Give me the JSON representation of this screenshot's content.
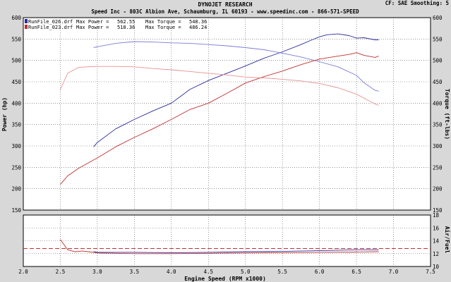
{
  "header": {
    "title": "DYNOJET RESEARCH",
    "subtitle": "Speed Inc - 803C Albion Ave, Schaumburg, IL 60193 - www.speedinc.com - 866-571-SPEED",
    "corner_info": "CF: SAE  Smoothing: 5"
  },
  "chart_data": [
    {
      "type": "line",
      "title": "DYNOJET RESEARCH",
      "xlabel": "Engine Speed (RPM x1000)",
      "ylabel": "Power (hp)",
      "y2label": "Torque (ft-lbs)",
      "xlim": [
        2.0,
        7.5
      ],
      "ylim": [
        150,
        600
      ],
      "y2lim": [
        150,
        600
      ],
      "x_ticks": [
        "2.0",
        "2.5",
        "3.0",
        "3.5",
        "4.0",
        "4.5",
        "5.0",
        "5.5",
        "6.0",
        "6.5",
        "7.0",
        "7.5"
      ],
      "y_ticks": [
        "150",
        "200",
        "250",
        "300",
        "350",
        "400",
        "450",
        "500",
        "550",
        "600"
      ],
      "y2_ticks": [
        "150",
        "200",
        "250",
        "300",
        "350",
        "400",
        "450",
        "500",
        "550",
        "600"
      ],
      "grid": true,
      "legend_position": "top-left",
      "legend": [
        {
          "file": "RunFile_026.drf",
          "max_power_label": "Max Power =",
          "max_power": "562.55",
          "max_torque_label": "Max Torque =",
          "max_torque": "548.36",
          "color": "#2a2aa0"
        },
        {
          "file": "RunFile_023.drf",
          "max_power_label": "Max Power =",
          "max_power": "518.36",
          "max_torque_label": "Max Torque =",
          "max_torque": "486.24",
          "color": "#c03030"
        }
      ],
      "series": [
        {
          "kind": "power",
          "run": "RunFile_026.drf",
          "color": "#2a2aa0",
          "x": [
            2.95,
            3.0,
            3.25,
            3.5,
            3.75,
            4.0,
            4.25,
            4.5,
            4.75,
            5.0,
            5.25,
            5.5,
            5.75,
            5.9,
            6.0,
            6.1,
            6.25,
            6.4,
            6.5,
            6.6,
            6.75,
            6.8
          ],
          "y": [
            298,
            308,
            340,
            362,
            382,
            400,
            432,
            453,
            470,
            487,
            505,
            520,
            537,
            548,
            555,
            560,
            562,
            558,
            552,
            553,
            548,
            548
          ]
        },
        {
          "kind": "torque",
          "run": "RunFile_026.drf",
          "color": "#7a7ad8",
          "x": [
            2.95,
            3.0,
            3.25,
            3.5,
            3.75,
            4.0,
            4.25,
            4.5,
            4.75,
            5.0,
            5.25,
            5.5,
            5.75,
            6.0,
            6.25,
            6.5,
            6.6,
            6.75,
            6.8
          ],
          "y": [
            530,
            532,
            540,
            544,
            543,
            541,
            540,
            537,
            534,
            530,
            525,
            517,
            508,
            497,
            485,
            465,
            448,
            430,
            428
          ]
        },
        {
          "kind": "power",
          "run": "RunFile_023.drf",
          "color": "#c03030",
          "x": [
            2.5,
            2.6,
            2.75,
            3.0,
            3.25,
            3.5,
            3.75,
            4.0,
            4.25,
            4.5,
            4.75,
            5.0,
            5.25,
            5.5,
            5.75,
            6.0,
            6.25,
            6.4,
            6.5,
            6.6,
            6.75,
            6.8
          ],
          "y": [
            210,
            230,
            248,
            272,
            298,
            320,
            340,
            362,
            385,
            400,
            423,
            447,
            462,
            475,
            490,
            503,
            510,
            514,
            518,
            512,
            507,
            510
          ]
        },
        {
          "kind": "torque",
          "run": "RunFile_023.drf",
          "color": "#e89090",
          "x": [
            2.5,
            2.6,
            2.75,
            3.0,
            3.25,
            3.5,
            3.75,
            4.0,
            4.25,
            4.5,
            4.75,
            5.0,
            5.25,
            5.5,
            5.75,
            6.0,
            6.25,
            6.5,
            6.6,
            6.75,
            6.8
          ],
          "y": [
            432,
            470,
            484,
            486,
            486,
            485,
            481,
            478,
            474,
            470,
            466,
            461,
            459,
            456,
            452,
            446,
            436,
            421,
            412,
            398,
            395
          ]
        }
      ]
    },
    {
      "type": "line",
      "title": "",
      "xlabel": "Engine Speed (RPM x1000)",
      "ylabel": "",
      "y2label": "Air/Fuel",
      "xlim": [
        2.0,
        7.5
      ],
      "ylim": [
        10,
        18
      ],
      "y_ticks": [],
      "y2_ticks": [
        "10",
        "12",
        "14",
        "16",
        "18"
      ],
      "grid": true,
      "reference_line": {
        "y": 12.8,
        "color": "#c03030",
        "style": "dashed"
      },
      "series": [
        {
          "kind": "afr",
          "run": "RunFile_023.drf",
          "color": "#c03030",
          "x": [
            2.5,
            2.55,
            2.6,
            2.7,
            2.8,
            2.95,
            3.0,
            3.5,
            4.0,
            4.5,
            5.0,
            5.5,
            6.0,
            6.5,
            6.8
          ],
          "y": [
            14.2,
            13.4,
            12.6,
            12.3,
            12.4,
            12.2,
            12.1,
            12.0,
            12.0,
            12.05,
            12.1,
            12.15,
            12.2,
            12.25,
            12.3
          ]
        },
        {
          "kind": "afr",
          "run": "RunFile_026.drf",
          "color": "#2a2aa0",
          "x": [
            2.95,
            3.0,
            3.5,
            4.0,
            4.5,
            5.0,
            5.5,
            6.0,
            6.5,
            6.8
          ],
          "y": [
            12.3,
            12.2,
            12.2,
            12.15,
            12.2,
            12.3,
            12.35,
            12.45,
            12.6,
            12.6
          ]
        }
      ]
    }
  ]
}
